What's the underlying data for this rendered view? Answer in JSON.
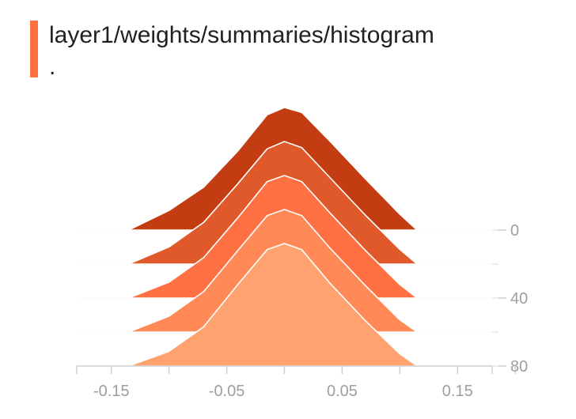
{
  "card": {
    "title": "layer1/weights/summaries/histogram",
    "subtitle": ".",
    "accent_color": "#ff7043"
  },
  "chart_data": {
    "type": "area",
    "title": "layer1/weights/summaries/histogram",
    "subtitle": ".",
    "xlabel": "",
    "ylabel": "",
    "x_ticks": [
      -0.15,
      -0.05,
      0.05,
      0.15
    ],
    "y_ticks": [
      0,
      40,
      80
    ],
    "xlim": [
      -0.18,
      0.18
    ],
    "ylim": [
      0,
      80
    ],
    "grid": false,
    "step_axis": "right",
    "series": [
      {
        "step": 0,
        "color": "#c43c12",
        "x": [
          -0.18,
          -0.135,
          -0.1,
          -0.07,
          -0.04,
          -0.015,
          0,
          0.015,
          0.04,
          0.07,
          0.1,
          0.115,
          0.18
        ],
        "y": [
          0,
          0,
          0.16,
          0.35,
          0.65,
          0.94,
          1.0,
          0.96,
          0.72,
          0.42,
          0.13,
          0,
          0
        ]
      },
      {
        "step": 20,
        "color": "#e0592a",
        "x": [
          -0.18,
          -0.135,
          -0.1,
          -0.07,
          -0.04,
          -0.015,
          0,
          0.015,
          0.04,
          0.07,
          0.1,
          0.115,
          0.18
        ],
        "y": [
          0,
          0,
          0.14,
          0.34,
          0.66,
          0.94,
          1.0,
          0.95,
          0.7,
          0.4,
          0.12,
          0,
          0
        ]
      },
      {
        "step": 40,
        "color": "#ff7043",
        "x": [
          -0.18,
          -0.135,
          -0.1,
          -0.07,
          -0.04,
          -0.015,
          0,
          0.015,
          0.04,
          0.07,
          0.1,
          0.115,
          0.18
        ],
        "y": [
          0,
          0,
          0.13,
          0.33,
          0.66,
          0.95,
          1.0,
          0.95,
          0.69,
          0.39,
          0.11,
          0,
          0
        ]
      },
      {
        "step": 60,
        "color": "#ff8a57",
        "x": [
          -0.18,
          -0.135,
          -0.1,
          -0.07,
          -0.04,
          -0.015,
          0,
          0.015,
          0.04,
          0.07,
          0.1,
          0.115,
          0.18
        ],
        "y": [
          0,
          0,
          0.13,
          0.33,
          0.67,
          0.95,
          1.0,
          0.95,
          0.68,
          0.38,
          0.1,
          0,
          0
        ]
      },
      {
        "step": 80,
        "color": "#ffa270",
        "x": [
          -0.18,
          -0.135,
          -0.1,
          -0.07,
          -0.04,
          -0.015,
          0,
          0.015,
          0.04,
          0.07,
          0.1,
          0.115,
          0.18
        ],
        "y": [
          0,
          0,
          0.12,
          0.32,
          0.67,
          0.95,
          1.0,
          0.95,
          0.67,
          0.37,
          0.1,
          0,
          0
        ]
      }
    ]
  }
}
